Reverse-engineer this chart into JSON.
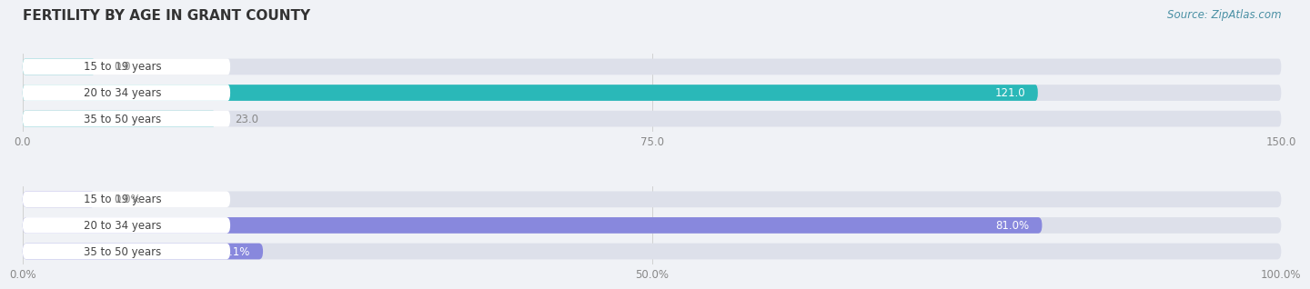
{
  "title": "FERTILITY BY AGE IN GRANT COUNTY",
  "source": "Source: ZipAtlas.com",
  "top_chart": {
    "categories": [
      "15 to 19 years",
      "20 to 34 years",
      "35 to 50 years"
    ],
    "values": [
      0.0,
      121.0,
      23.0
    ],
    "value_labels": [
      "0.0",
      "121.0",
      "23.0"
    ],
    "xlim": [
      0,
      150.0
    ],
    "xticks": [
      0.0,
      75.0,
      150.0
    ],
    "xtick_labels": [
      "0.0",
      "75.0",
      "150.0"
    ],
    "bar_color": "#2ab8b8",
    "bar_bg_color": "#dde0ea",
    "label_bg_color": "#f0f2f6"
  },
  "bottom_chart": {
    "categories": [
      "15 to 19 years",
      "20 to 34 years",
      "35 to 50 years"
    ],
    "values": [
      0.0,
      81.0,
      19.1
    ],
    "value_labels": [
      "0.0%",
      "81.0%",
      "19.1%"
    ],
    "xlim": [
      0,
      100.0
    ],
    "xticks": [
      0.0,
      50.0,
      100.0
    ],
    "xtick_labels": [
      "0.0%",
      "50.0%",
      "100.0%"
    ],
    "bar_color": "#8888dd",
    "bar_bg_color": "#dde0ea",
    "label_bg_color": "#f0f2f6"
  },
  "label_font_size": 8.5,
  "tick_font_size": 8.5,
  "title_font_size": 11,
  "source_font_size": 8.5,
  "bar_height": 0.62,
  "background_color": "#f0f2f6",
  "text_color": "#444444",
  "value_inside_color": "#ffffff",
  "value_outside_color": "#888888"
}
